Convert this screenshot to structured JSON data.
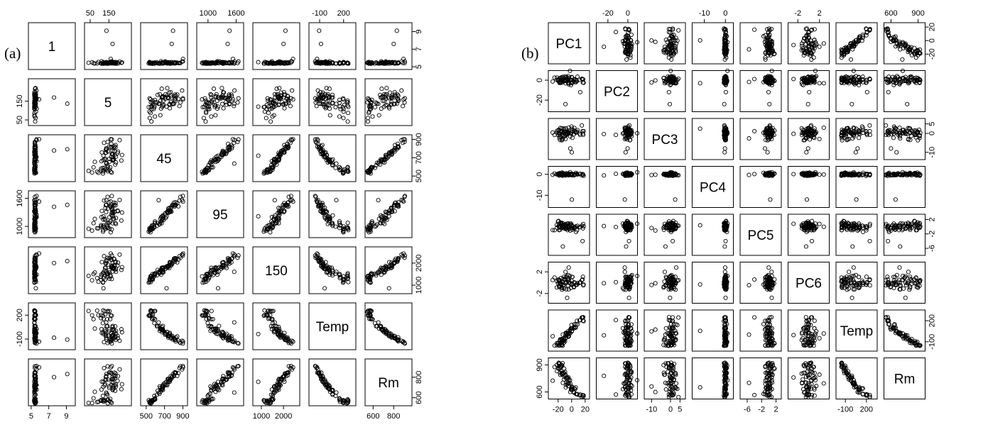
{
  "figure": {
    "label_a": "(a)",
    "label_b": "(b)"
  },
  "chart_data": [
    {
      "type": "scatter",
      "title": "",
      "panel_label": "(a)",
      "layout": "scatter-matrix",
      "grid": false,
      "variables": [
        {
          "name": "1",
          "range": [
            4.9,
            9.8
          ],
          "ticks": [
            "5",
            "7",
            "9"
          ],
          "tick_values": [
            5,
            7,
            9
          ]
        },
        {
          "name": "5",
          "range": [
            30,
            260
          ],
          "ticks": [
            "50",
            "150"
          ],
          "tick_values": [
            50,
            150
          ]
        },
        {
          "name": "45",
          "range": [
            460,
            930
          ],
          "ticks": [
            "500",
            "700",
            "900"
          ],
          "tick_values": [
            500,
            700,
            900
          ]
        },
        {
          "name": "95",
          "range": [
            800,
            1720
          ],
          "ticks": [
            "1000",
            "1600"
          ],
          "tick_values": [
            1000,
            1600
          ]
        },
        {
          "name": "150",
          "range": [
            700,
            2650
          ],
          "ticks": [
            "1000",
            "2000"
          ],
          "tick_values": [
            1000,
            2000
          ]
        },
        {
          "name": "Temp",
          "range": [
            -210,
            330
          ],
          "ticks": [
            "-100",
            "200"
          ],
          "tick_values": [
            -100,
            200
          ]
        },
        {
          "name": "Rm",
          "range": [
            540,
            960
          ],
          "ticks": [
            "600",
            "800"
          ],
          "tick_values": [
            600,
            800
          ]
        }
      ],
      "diagonal_labels": [
        "1",
        "5",
        "45",
        "95",
        "150",
        "Temp",
        "Rm"
      ],
      "top_axis_ticks": {
        "1": [
          "50",
          "150"
        ],
        "3": [
          "1000",
          "1600"
        ],
        "5": [
          "-100",
          "200"
        ]
      },
      "bottom_axis_ticks": {
        "0": [
          "5",
          "7",
          "9"
        ],
        "2": [
          "500",
          "700",
          "900"
        ],
        "4": [
          "1000",
          "2000"
        ],
        "6": [
          "600",
          "800"
        ]
      },
      "left_axis_ticks": {
        "1": [
          "50",
          "150"
        ],
        "3": [
          "1000",
          "1600"
        ],
        "5": [
          "-100",
          "200"
        ]
      },
      "right_axis_ticks": {
        "0": [
          "5",
          "7",
          "9"
        ],
        "2": [
          "500",
          "700",
          "900"
        ],
        "4": [
          "1000",
          "2000"
        ],
        "6": [
          "600",
          "800"
        ]
      },
      "n_points": 72,
      "seed": 11,
      "marker": "open-circle"
    },
    {
      "type": "scatter",
      "title": "",
      "panel_label": "(b)",
      "layout": "scatter-matrix",
      "grid": false,
      "variables": [
        {
          "name": "PC1",
          "range": [
            -32,
            24
          ],
          "ticks": [
            "-20",
            "0",
            "20"
          ],
          "tick_values": [
            -20,
            0,
            20
          ]
        },
        {
          "name": "PC2",
          "range": [
            -30,
            8
          ],
          "ticks": [
            "-20",
            "0"
          ],
          "tick_values": [
            -20,
            0
          ]
        },
        {
          "name": "PC3",
          "range": [
            -13,
            7
          ],
          "ticks": [
            "-10",
            "0",
            "5"
          ],
          "tick_values": [
            -10,
            0,
            5
          ]
        },
        {
          "name": "PC4",
          "range": [
            -15,
            3
          ],
          "ticks": [
            "-10",
            "0"
          ],
          "tick_values": [
            -10,
            0
          ]
        },
        {
          "name": "PC5",
          "range": [
            -7.5,
            3
          ],
          "ticks": [
            "-6",
            "-2",
            "2"
          ],
          "tick_values": [
            -6,
            -2,
            2
          ]
        },
        {
          "name": "PC6",
          "range": [
            -3.5,
            3.5
          ],
          "ticks": [
            "-2",
            "2"
          ],
          "tick_values": [
            -2,
            2
          ]
        },
        {
          "name": "Temp",
          "range": [
            -210,
            330
          ],
          "ticks": [
            "-100",
            "200"
          ],
          "tick_values": [
            -100,
            200
          ]
        },
        {
          "name": "Rm",
          "range": [
            540,
            960
          ],
          "ticks": [
            "600",
            "900"
          ],
          "tick_values": [
            600,
            900
          ]
        }
      ],
      "diagonal_labels": [
        "PC1",
        "PC2",
        "PC3",
        "PC4",
        "PC5",
        "PC6",
        "Temp",
        "Rm"
      ],
      "top_axis_ticks": {
        "1": [
          "-20",
          "0"
        ],
        "3": [
          "-10",
          "0"
        ],
        "5": [
          "-2",
          "2"
        ],
        "7": [
          "600",
          "900"
        ]
      },
      "bottom_axis_ticks": {
        "0": [
          "-20",
          "0",
          "20"
        ],
        "2": [
          "-10",
          "0",
          "5"
        ],
        "4": [
          "-6",
          "-2",
          "2"
        ],
        "6": [
          "-100",
          "200"
        ]
      },
      "left_axis_ticks": {
        "1": [
          "-20",
          "0"
        ],
        "3": [
          "-10",
          "0"
        ],
        "5": [
          "-2",
          "2"
        ],
        "7": [
          "600",
          "900"
        ]
      },
      "right_axis_ticks": {
        "0": [
          "-20",
          "0",
          "20"
        ],
        "2": [
          "-10",
          "0",
          "5"
        ],
        "4": [
          "-6",
          "-2",
          "2"
        ],
        "6": [
          "-100",
          "200"
        ]
      },
      "n_points": 72,
      "seed": 29,
      "marker": "open-circle"
    }
  ]
}
